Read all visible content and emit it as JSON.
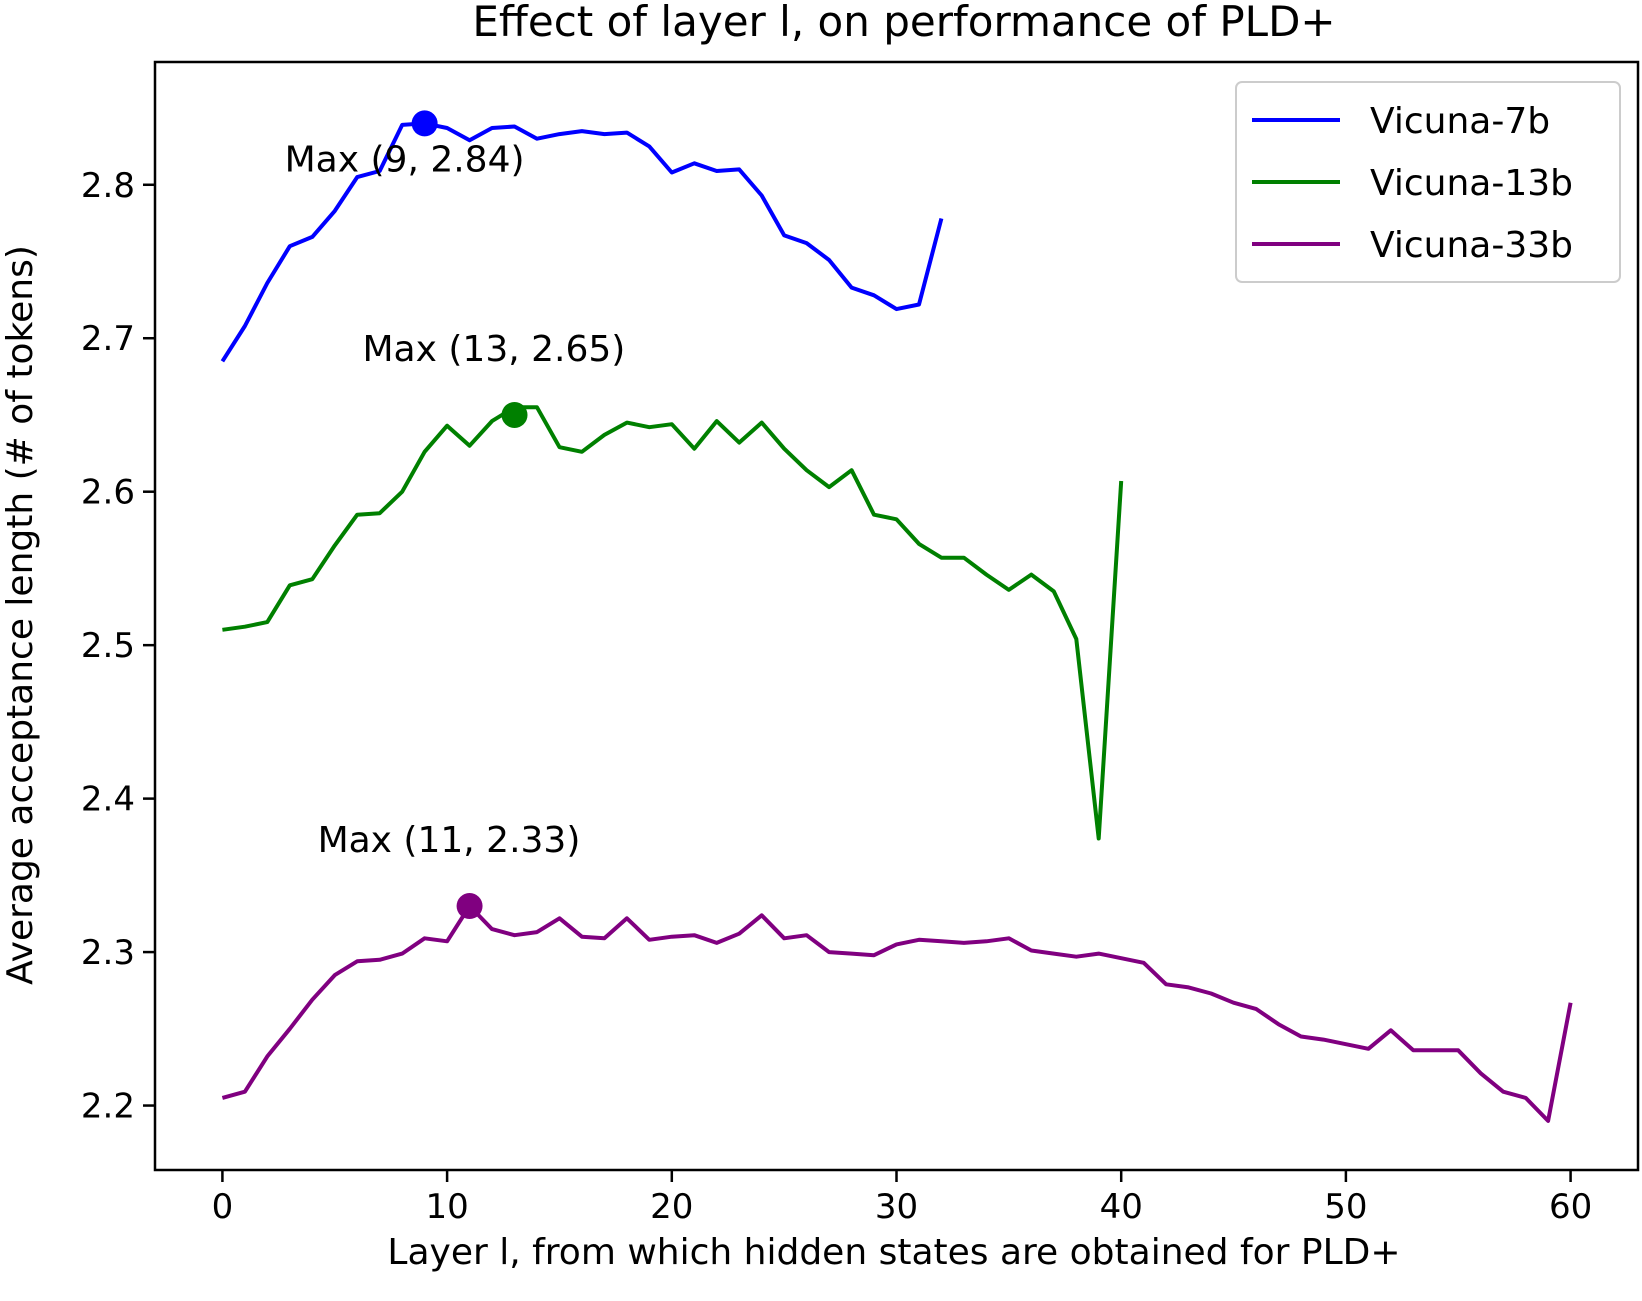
{
  "chart_data": {
    "type": "line",
    "title": "Effect of layer l, on performance of PLD+",
    "xlabel": "Layer l, from which hidden states are obtained for PLD+",
    "ylabel": "Average acceptance length (# of tokens)",
    "xlim": [
      -3,
      63
    ],
    "ylim": [
      2.158,
      2.88
    ],
    "xticks": [
      0,
      10,
      20,
      30,
      40,
      50,
      60
    ],
    "yticks": [
      2.2,
      2.3,
      2.4,
      2.5,
      2.6,
      2.7,
      2.8
    ],
    "grid": false,
    "legend_position": "top-right",
    "series": [
      {
        "name": "Vicuna-7b",
        "color": "#0000ff",
        "x": [
          0,
          1,
          2,
          3,
          4,
          5,
          6,
          7,
          8,
          9,
          10,
          11,
          12,
          13,
          14,
          15,
          16,
          17,
          18,
          19,
          20,
          21,
          22,
          23,
          24,
          25,
          26,
          27,
          28,
          29,
          30,
          31,
          32
        ],
        "values": [
          2.685,
          2.708,
          2.736,
          2.76,
          2.766,
          2.783,
          2.805,
          2.809,
          2.839,
          2.84,
          2.837,
          2.829,
          2.837,
          2.838,
          2.83,
          2.833,
          2.835,
          2.833,
          2.834,
          2.825,
          2.808,
          2.814,
          2.809,
          2.81,
          2.793,
          2.767,
          2.762,
          2.751,
          2.733,
          2.728,
          2.719,
          2.722,
          2.778
        ],
        "max_point": {
          "x": 9,
          "y": 2.84
        },
        "max_label": "Max (9, 2.84)"
      },
      {
        "name": "Vicuna-13b",
        "color": "#008000",
        "x": [
          0,
          1,
          2,
          3,
          4,
          5,
          6,
          7,
          8,
          9,
          10,
          11,
          12,
          13,
          14,
          15,
          16,
          17,
          18,
          19,
          20,
          21,
          22,
          23,
          24,
          25,
          26,
          27,
          28,
          29,
          30,
          31,
          32,
          33,
          34,
          35,
          36,
          37,
          38,
          39,
          40
        ],
        "values": [
          2.51,
          2.512,
          2.515,
          2.539,
          2.543,
          2.565,
          2.585,
          2.586,
          2.6,
          2.626,
          2.643,
          2.63,
          2.646,
          2.655,
          2.655,
          2.629,
          2.626,
          2.637,
          2.645,
          2.642,
          2.644,
          2.628,
          2.646,
          2.632,
          2.645,
          2.628,
          2.614,
          2.603,
          2.614,
          2.585,
          2.582,
          2.566,
          2.557,
          2.557,
          2.546,
          2.536,
          2.546,
          2.535,
          2.504,
          2.374,
          2.607
        ],
        "max_point": {
          "x": 13,
          "y": 2.65
        },
        "max_label": "Max (13, 2.65)"
      },
      {
        "name": "Vicuna-33b",
        "color": "#800080",
        "x": [
          0,
          1,
          2,
          3,
          4,
          5,
          6,
          7,
          8,
          9,
          10,
          11,
          12,
          13,
          14,
          15,
          16,
          17,
          18,
          19,
          20,
          21,
          22,
          23,
          24,
          25,
          26,
          27,
          28,
          29,
          30,
          31,
          32,
          33,
          34,
          35,
          36,
          37,
          38,
          39,
          40,
          41,
          42,
          43,
          44,
          45,
          46,
          47,
          48,
          49,
          50,
          51,
          52,
          53,
          54,
          55,
          56,
          57,
          58,
          59,
          60
        ],
        "values": [
          2.205,
          2.209,
          2.232,
          2.25,
          2.269,
          2.285,
          2.294,
          2.295,
          2.299,
          2.309,
          2.307,
          2.33,
          2.315,
          2.311,
          2.313,
          2.322,
          2.31,
          2.309,
          2.322,
          2.308,
          2.31,
          2.311,
          2.306,
          2.312,
          2.324,
          2.309,
          2.311,
          2.3,
          2.299,
          2.298,
          2.305,
          2.308,
          2.307,
          2.306,
          2.307,
          2.309,
          2.301,
          2.299,
          2.297,
          2.299,
          2.296,
          2.293,
          2.279,
          2.277,
          2.273,
          2.267,
          2.263,
          2.253,
          2.245,
          2.243,
          2.24,
          2.237,
          2.249,
          2.236,
          2.236,
          2.236,
          2.221,
          2.209,
          2.205,
          2.19,
          2.267
        ],
        "max_point": {
          "x": 11,
          "y": 2.33
        },
        "max_label": "Max (11, 2.33)"
      }
    ]
  }
}
